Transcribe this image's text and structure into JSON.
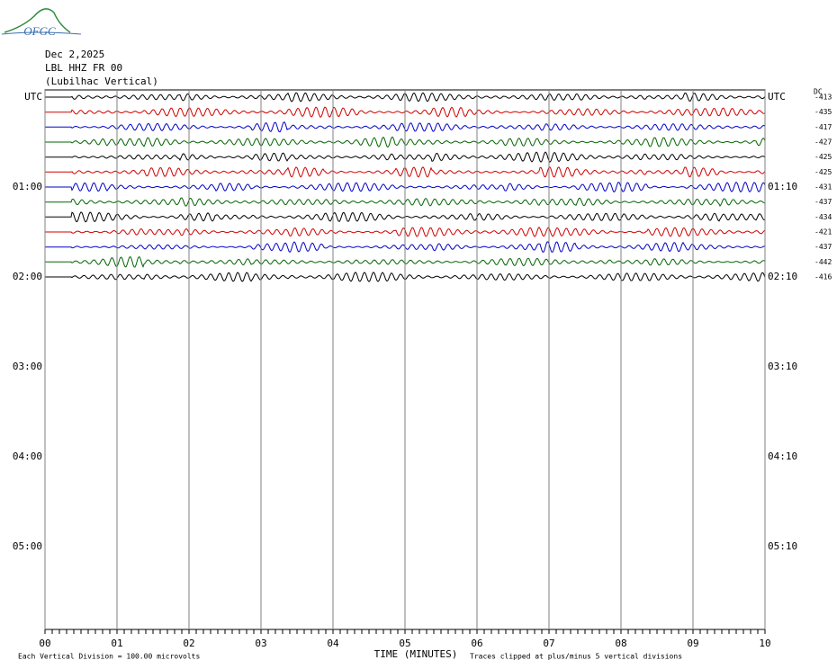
{
  "header": {
    "logo": "OFGC",
    "date": "Dec 2,2025",
    "station": "LBL HHZ FR 00",
    "location": "(Lubilhac Vertical)"
  },
  "left_labels": [
    "UTC",
    "01:00",
    "02:00",
    "03:00",
    "04:00",
    "05:00"
  ],
  "right_labels": [
    "UTC",
    "01:10",
    "02:10",
    "03:10",
    "04:10",
    "05:10"
  ],
  "dc_label": "DC",
  "dc_values": [
    -413,
    -435,
    -417,
    -427,
    -425,
    -425,
    -431,
    -437,
    -434,
    -421,
    -437,
    -442,
    -416
  ],
  "trace_colors": [
    "#000000",
    "#d00000",
    "#0000c8",
    "#006400"
  ],
  "x_ticks": [
    "00",
    "01",
    "02",
    "03",
    "04",
    "05",
    "06",
    "07",
    "08",
    "09",
    "10"
  ],
  "x_axis_label": "TIME (MINUTES)",
  "footer_left": "Each Vertical Division =  100.00 microvolts",
  "footer_right": "Traces clipped at plus/minus 5 vertical divisions"
}
